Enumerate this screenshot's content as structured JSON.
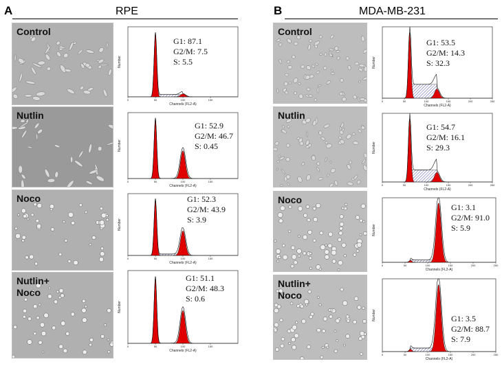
{
  "figure": {
    "panels": [
      {
        "id": "A",
        "letter": "A",
        "title": "RPE",
        "rows": [
          {
            "label": "Control",
            "stats": {
              "g1": "G1: 87.1",
              "g2m": "G2/M: 7.5",
              "s": "S: 5.5"
            }
          },
          {
            "label": "Nutlin",
            "stats": {
              "g1": "G1: 52.9",
              "g2m": "G2/M: 46.7",
              "s": "S: 0.45"
            }
          },
          {
            "label": "Noco",
            "stats": {
              "g1": "G1: 52.3",
              "g2m": "G2/M: 43.9",
              "s": "S: 3.9"
            }
          },
          {
            "label": "Nutlin+\nNoco",
            "stats": {
              "g1": "G1: 51.1",
              "g2m": "G2/M: 48.3",
              "s": "S: 0.6"
            }
          }
        ],
        "x_axis_title": "Channels (FL2-A)",
        "y_axis_title": "Number"
      },
      {
        "id": "B",
        "letter": "B",
        "title": "MDA-MB-231",
        "rows": [
          {
            "label": "Control",
            "stats": {
              "g1": "G1: 53.5",
              "g2m": "G2/M: 14.3",
              "s": "S: 32.3"
            }
          },
          {
            "label": "Nutlin",
            "stats": {
              "g1": "G1: 54.7",
              "g2m": "G2/M: 16.1",
              "s": "S: 29.3"
            }
          },
          {
            "label": "Noco",
            "stats": {
              "g1": "G1: 3.1",
              "g2m": "G2/M: 91.0",
              "s": "S: 5.9"
            }
          },
          {
            "label": "Nutlin+\nNoco",
            "stats": {
              "g1": "G1: 3.5",
              "g2m": "G2/M: 88.7",
              "s": "S: 7.9"
            }
          }
        ],
        "x_axis_title": "Channels (FL2-A)",
        "y_axis_title": "Number"
      }
    ]
  },
  "colors": {
    "peak_fill": "#e00000",
    "s_phase_hatch": "#2a2a9a",
    "micro_bg": "#b4b4b4",
    "micro_cell": "#e6e6e6"
  },
  "chart_data": [
    {
      "type": "area",
      "panel": "A",
      "condition": "Control",
      "x_range": [
        0,
        200
      ],
      "g1_peak_x": 50,
      "g2_peak_x": 100,
      "g1_pct": 87.1,
      "g2m_pct": 7.5,
      "s_pct": 5.5,
      "x_ticks": [
        "0",
        "50",
        "100",
        "150"
      ]
    },
    {
      "type": "area",
      "panel": "A",
      "condition": "Nutlin",
      "x_range": [
        0,
        200
      ],
      "g1_peak_x": 50,
      "g2_peak_x": 100,
      "g1_pct": 52.9,
      "g2m_pct": 46.7,
      "s_pct": 0.45,
      "x_ticks": [
        "0",
        "50",
        "100",
        "150"
      ]
    },
    {
      "type": "area",
      "panel": "A",
      "condition": "Noco",
      "x_range": [
        0,
        200
      ],
      "g1_peak_x": 50,
      "g2_peak_x": 100,
      "g1_pct": 52.3,
      "g2m_pct": 43.9,
      "s_pct": 3.9,
      "x_ticks": [
        "0",
        "50",
        "100",
        "150"
      ]
    },
    {
      "type": "area",
      "panel": "A",
      "condition": "Nutlin+Noco",
      "x_range": [
        0,
        200
      ],
      "g1_peak_x": 50,
      "g2_peak_x": 100,
      "g1_pct": 51.1,
      "g2m_pct": 48.3,
      "s_pct": 0.6,
      "x_ticks": [
        "0",
        "50",
        "100",
        "150"
      ]
    },
    {
      "type": "area",
      "panel": "B",
      "condition": "Control",
      "x_range": [
        0,
        250
      ],
      "g1_peak_x": 62,
      "g2_peak_x": 124,
      "g1_pct": 53.5,
      "g2m_pct": 14.3,
      "s_pct": 32.3,
      "x_ticks": [
        "0",
        "50",
        "100",
        "150",
        "200",
        "250"
      ]
    },
    {
      "type": "area",
      "panel": "B",
      "condition": "Nutlin",
      "x_range": [
        0,
        250
      ],
      "g1_peak_x": 62,
      "g2_peak_x": 124,
      "g1_pct": 54.7,
      "g2m_pct": 16.1,
      "s_pct": 29.3,
      "x_ticks": [
        "0",
        "50",
        "100",
        "150",
        "200",
        "250"
      ]
    },
    {
      "type": "area",
      "panel": "B",
      "condition": "Noco",
      "x_range": [
        0,
        250
      ],
      "g1_peak_x": 62,
      "g2_peak_x": 124,
      "g1_pct": 3.1,
      "g2m_pct": 91.0,
      "s_pct": 5.9,
      "x_ticks": [
        "0",
        "50",
        "100",
        "150",
        "200",
        "250"
      ]
    },
    {
      "type": "area",
      "panel": "B",
      "condition": "Nutlin+Noco",
      "x_range": [
        0,
        250
      ],
      "g1_peak_x": 62,
      "g2_peak_x": 124,
      "g1_pct": 3.5,
      "g2m_pct": 88.7,
      "s_pct": 7.9,
      "x_ticks": [
        "0",
        "50",
        "100",
        "150",
        "200",
        "250"
      ]
    }
  ]
}
